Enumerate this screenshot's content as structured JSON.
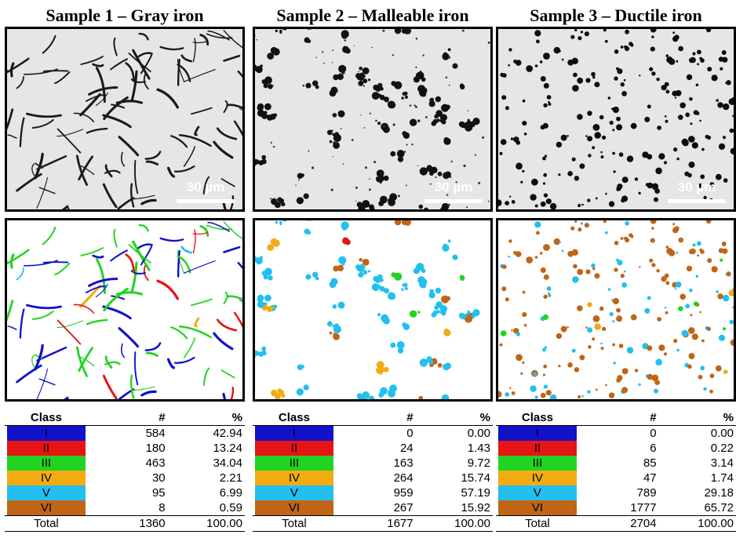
{
  "samples": [
    {
      "title": "Sample 1 – Gray iron",
      "scale": "30 µm",
      "rows": [
        {
          "cls": "I",
          "n": "584",
          "pct": "42.94"
        },
        {
          "cls": "II",
          "n": "180",
          "pct": "13.24"
        },
        {
          "cls": "III",
          "n": "463",
          "pct": "34.04"
        },
        {
          "cls": "IV",
          "n": "30",
          "pct": "2.21"
        },
        {
          "cls": "V",
          "n": "95",
          "pct": "6.99"
        },
        {
          "cls": "VI",
          "n": "8",
          "pct": "0.59"
        }
      ],
      "total": {
        "label": "Total",
        "n": "1360",
        "pct": "100.00"
      }
    },
    {
      "title": "Sample 2 – Malleable iron",
      "scale": "30 µm",
      "rows": [
        {
          "cls": "I",
          "n": "0",
          "pct": "0.00"
        },
        {
          "cls": "II",
          "n": "24",
          "pct": "1.43"
        },
        {
          "cls": "III",
          "n": "163",
          "pct": "9.72"
        },
        {
          "cls": "IV",
          "n": "264",
          "pct": "15.74"
        },
        {
          "cls": "V",
          "n": "959",
          "pct": "57.19"
        },
        {
          "cls": "VI",
          "n": "267",
          "pct": "15.92"
        }
      ],
      "total": {
        "label": "Total",
        "n": "1677",
        "pct": "100.00"
      }
    },
    {
      "title": "Sample 3 – Ductile iron",
      "scale": "30 µm",
      "rows": [
        {
          "cls": "I",
          "n": "0",
          "pct": "0.00"
        },
        {
          "cls": "II",
          "n": "6",
          "pct": "0.22"
        },
        {
          "cls": "III",
          "n": "85",
          "pct": "3.14"
        },
        {
          "cls": "IV",
          "n": "47",
          "pct": "1.74"
        },
        {
          "cls": "V",
          "n": "789",
          "pct": "29.18"
        },
        {
          "cls": "VI",
          "n": "1777",
          "pct": "65.72"
        }
      ],
      "total": {
        "label": "Total",
        "n": "2704",
        "pct": "100.00"
      }
    }
  ],
  "table_header": {
    "cls": "Class",
    "n": "#",
    "pct": "%"
  },
  "class_colors": {
    "I": "#1212c8",
    "II": "#e61414",
    "III": "#22d422",
    "IV": "#f2ab12",
    "V": "#22bff0",
    "VI": "#c06516"
  }
}
